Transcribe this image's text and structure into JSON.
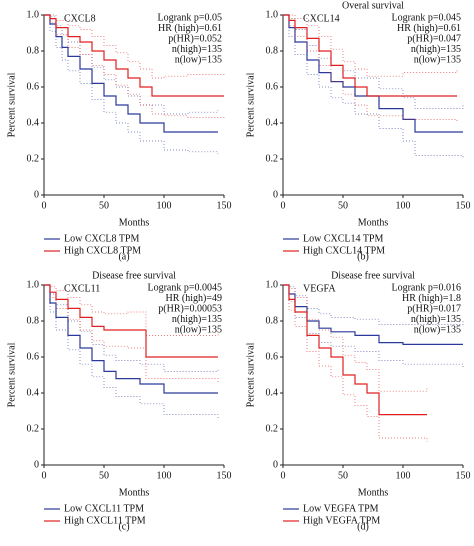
{
  "chart_data": [
    {
      "type": "line",
      "step": true,
      "gene": "CXCL8",
      "annotations": [
        "Logrank p=0.05",
        "HR (high)=0.61",
        "p(HR)=0.052",
        "n(high)=135",
        "n(low)=135"
      ],
      "xlabel": "Months",
      "ylabel": "Percent survival",
      "panel": "(a)",
      "xlim": [
        0,
        150
      ],
      "xticks": [
        0,
        50,
        100,
        150
      ],
      "ylim": [
        0,
        1
      ],
      "yticks": [
        0,
        0.2,
        0.4,
        0.6,
        0.8,
        {
          "value": 1,
          "label": "1.0"
        }
      ],
      "series": [
        {
          "name": "Low CXCL8 TPM",
          "color": "#2b3a9a",
          "x": [
            0,
            5,
            10,
            15,
            20,
            30,
            40,
            50,
            60,
            70,
            80,
            100,
            120,
            145
          ],
          "values": [
            1,
            0.95,
            0.88,
            0.82,
            0.77,
            0.7,
            0.62,
            0.55,
            0.5,
            0.45,
            0.4,
            0.35,
            0.35,
            0.35
          ],
          "lower": [
            1,
            0.91,
            0.82,
            0.75,
            0.69,
            0.62,
            0.53,
            0.46,
            0.4,
            0.35,
            0.3,
            0.25,
            0.24,
            0.23
          ],
          "upper": [
            1,
            0.99,
            0.94,
            0.89,
            0.85,
            0.78,
            0.71,
            0.64,
            0.6,
            0.55,
            0.5,
            0.45,
            0.46,
            0.47
          ]
        },
        {
          "name": "High CXCL8 TPM",
          "color": "#e02020",
          "x": [
            0,
            5,
            10,
            20,
            30,
            40,
            50,
            60,
            70,
            80,
            90,
            100,
            120,
            150
          ],
          "values": [
            1,
            0.98,
            0.93,
            0.88,
            0.85,
            0.8,
            0.75,
            0.7,
            0.65,
            0.6,
            0.55,
            0.55,
            0.55,
            0.55
          ],
          "lower": [
            1,
            0.96,
            0.89,
            0.82,
            0.78,
            0.72,
            0.67,
            0.61,
            0.56,
            0.5,
            0.45,
            0.44,
            0.43,
            0.42
          ],
          "upper": [
            1,
            1,
            0.97,
            0.94,
            0.92,
            0.88,
            0.83,
            0.79,
            0.74,
            0.7,
            0.65,
            0.66,
            0.67,
            0.68
          ]
        }
      ]
    },
    {
      "type": "line",
      "step": true,
      "title": "Overal survival",
      "gene": "CXCL14",
      "annotations": [
        "Logrank p=0.045",
        "HR (high)=0.61",
        "p(HR)=0.047",
        "n(high)=135",
        "n(low)=135"
      ],
      "xlabel": "Months",
      "ylabel": "Percent survival",
      "panel": "(b)",
      "xlim": [
        0,
        150
      ],
      "xticks": [
        0,
        50,
        100,
        150
      ],
      "ylim": [
        0,
        1
      ],
      "yticks": [
        0,
        0.2,
        0.4,
        0.6,
        0.8,
        {
          "value": 1,
          "label": "1.0"
        }
      ],
      "series": [
        {
          "name": "Low CXCL14 TPM",
          "color": "#2b3a9a",
          "x": [
            0,
            5,
            10,
            20,
            30,
            40,
            50,
            60,
            80,
            100,
            110,
            150
          ],
          "values": [
            1,
            0.93,
            0.85,
            0.75,
            0.68,
            0.63,
            0.6,
            0.55,
            0.48,
            0.42,
            0.35,
            0.35
          ],
          "lower": [
            1,
            0.88,
            0.78,
            0.67,
            0.6,
            0.54,
            0.51,
            0.45,
            0.37,
            0.3,
            0.22,
            0.2
          ],
          "upper": [
            1,
            0.98,
            0.92,
            0.83,
            0.76,
            0.72,
            0.69,
            0.65,
            0.59,
            0.54,
            0.48,
            0.5
          ]
        },
        {
          "name": "High CXCL14 TPM",
          "color": "#e02020",
          "x": [
            0,
            5,
            10,
            20,
            30,
            40,
            50,
            60,
            70,
            100,
            145
          ],
          "values": [
            1,
            0.97,
            0.93,
            0.87,
            0.8,
            0.72,
            0.65,
            0.6,
            0.55,
            0.55,
            0.55
          ],
          "lower": [
            1,
            0.94,
            0.88,
            0.8,
            0.72,
            0.63,
            0.56,
            0.5,
            0.44,
            0.42,
            0.4
          ],
          "upper": [
            1,
            1,
            0.98,
            0.94,
            0.88,
            0.81,
            0.74,
            0.7,
            0.66,
            0.68,
            0.7
          ]
        }
      ]
    },
    {
      "type": "line",
      "step": true,
      "title": "Disease free survival",
      "gene": "CXCL11",
      "annotations": [
        "Logrank p=0.0045",
        "HR (high)=49",
        "p(HR)=0.00053",
        "n(high)=135",
        "n(low)=135"
      ],
      "xlabel": "Months",
      "ylabel": "Percent survival",
      "panel": "(c)",
      "xlim": [
        0,
        150
      ],
      "xticks": [
        0,
        50,
        100,
        150
      ],
      "ylim": [
        0,
        1
      ],
      "yticks": [
        0,
        0.2,
        0.4,
        0.6,
        0.8,
        {
          "value": 1,
          "label": "1.0"
        }
      ],
      "series": [
        {
          "name": "Low CXCL11 TPM",
          "color": "#2b3a9a",
          "x": [
            0,
            5,
            10,
            20,
            30,
            40,
            50,
            60,
            80,
            100,
            145
          ],
          "values": [
            1,
            0.9,
            0.82,
            0.72,
            0.65,
            0.58,
            0.52,
            0.48,
            0.45,
            0.4,
            0.4
          ],
          "lower": [
            1,
            0.85,
            0.75,
            0.64,
            0.56,
            0.49,
            0.43,
            0.38,
            0.34,
            0.28,
            0.26
          ],
          "upper": [
            1,
            0.95,
            0.89,
            0.8,
            0.74,
            0.67,
            0.61,
            0.58,
            0.56,
            0.52,
            0.54
          ]
        },
        {
          "name": "High CXCL11 TPM",
          "color": "#e02020",
          "x": [
            0,
            5,
            10,
            20,
            30,
            40,
            50,
            70,
            85,
            145
          ],
          "values": [
            1,
            0.96,
            0.92,
            0.87,
            0.82,
            0.77,
            0.75,
            0.75,
            0.6,
            0.6
          ],
          "lower": [
            1,
            0.93,
            0.87,
            0.81,
            0.75,
            0.69,
            0.66,
            0.65,
            0.48,
            0.46
          ],
          "upper": [
            1,
            0.99,
            0.97,
            0.93,
            0.89,
            0.85,
            0.84,
            0.85,
            0.72,
            0.74
          ]
        }
      ]
    },
    {
      "type": "line",
      "step": true,
      "title": "Disease free survival",
      "gene": "VEGFA",
      "annotations": [
        "Logrank p=0.016",
        "HR (high)=1.8",
        "p(HR)=0.017",
        "n(high)=135",
        "n(low)=135"
      ],
      "xlabel": "Months",
      "ylabel": "Percent survival",
      "panel": "(d)",
      "xlim": [
        0,
        150
      ],
      "xticks": [
        0,
        50,
        100,
        150
      ],
      "ylim": [
        0,
        1
      ],
      "yticks": [
        0,
        0.2,
        0.4,
        0.6,
        0.8,
        {
          "value": 1,
          "label": "1.0"
        }
      ],
      "series": [
        {
          "name": "Low VEGFA TPM",
          "color": "#2b3a9a",
          "x": [
            0,
            5,
            10,
            20,
            30,
            40,
            60,
            80,
            100,
            150
          ],
          "values": [
            1,
            0.95,
            0.88,
            0.8,
            0.76,
            0.74,
            0.72,
            0.68,
            0.67,
            0.67
          ],
          "lower": [
            1,
            0.91,
            0.82,
            0.73,
            0.68,
            0.66,
            0.63,
            0.58,
            0.56,
            0.54
          ],
          "upper": [
            1,
            0.99,
            0.94,
            0.87,
            0.84,
            0.82,
            0.81,
            0.78,
            0.78,
            0.8
          ]
        },
        {
          "name": "High VEGFA TPM",
          "color": "#e02020",
          "x": [
            0,
            5,
            10,
            20,
            30,
            40,
            50,
            60,
            70,
            80,
            120
          ],
          "values": [
            1,
            0.92,
            0.85,
            0.72,
            0.65,
            0.6,
            0.5,
            0.45,
            0.4,
            0.28,
            0.28
          ],
          "lower": [
            1,
            0.86,
            0.77,
            0.63,
            0.55,
            0.49,
            0.39,
            0.33,
            0.27,
            0.15,
            0.13
          ],
          "upper": [
            1,
            0.98,
            0.93,
            0.81,
            0.75,
            0.71,
            0.61,
            0.57,
            0.53,
            0.41,
            0.43
          ]
        }
      ]
    }
  ]
}
